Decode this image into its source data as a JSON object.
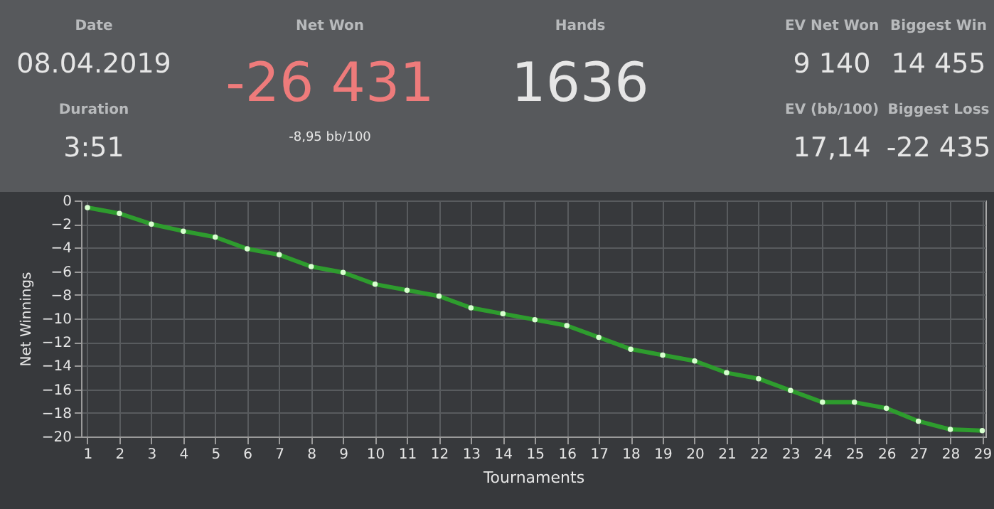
{
  "chart_data": [
    {
      "type": "other",
      "annotations": [
        "Date",
        "08.04.2019",
        "Duration",
        "3:51",
        "Net Won",
        "-26 431",
        "-8,95 bb/100",
        "Hands",
        "1636",
        "EV Net Won",
        "9 140",
        "Biggest Win",
        "14 455",
        "EV (bb/100)",
        "17,14",
        "Biggest Loss",
        "-22 435"
      ]
    },
    {
      "type": "line",
      "xlabel": "Tournaments",
      "ylabel": "Net Winnings",
      "x": [
        1,
        2,
        3,
        4,
        5,
        6,
        7,
        8,
        9,
        10,
        11,
        12,
        13,
        14,
        15,
        16,
        17,
        18,
        19,
        20,
        21,
        22,
        23,
        24,
        25,
        26,
        27,
        28,
        29
      ],
      "series": [
        {
          "color": "#2e9c2e",
          "values": [
            -0.6,
            -1.1,
            -2.0,
            -2.6,
            -3.1,
            -4.1,
            -4.6,
            -5.6,
            -6.1,
            -7.1,
            -7.6,
            -8.1,
            -9.1,
            -9.6,
            -10.1,
            -10.6,
            -11.6,
            -12.6,
            -13.1,
            -13.6,
            -14.6,
            -15.1,
            -16.1,
            -17.1,
            -17.1,
            -17.6,
            -18.7,
            -19.4,
            -19.5
          ]
        }
      ],
      "xlim": [
        0.8,
        29.1
      ],
      "xticks": [
        1,
        2,
        3,
        4,
        5,
        6,
        7,
        8,
        9,
        10,
        11,
        12,
        13,
        14,
        15,
        16,
        17,
        18,
        19,
        20,
        21,
        22,
        23,
        24,
        25,
        26,
        27,
        28,
        29
      ],
      "ylim": [
        -20,
        0
      ],
      "yticks": [
        -20,
        -18,
        -16,
        -14,
        -12,
        -10,
        -8,
        -6,
        -4,
        -2,
        0
      ],
      "grid": true,
      "marker": "circle",
      "line_style": "solid"
    }
  ]
}
